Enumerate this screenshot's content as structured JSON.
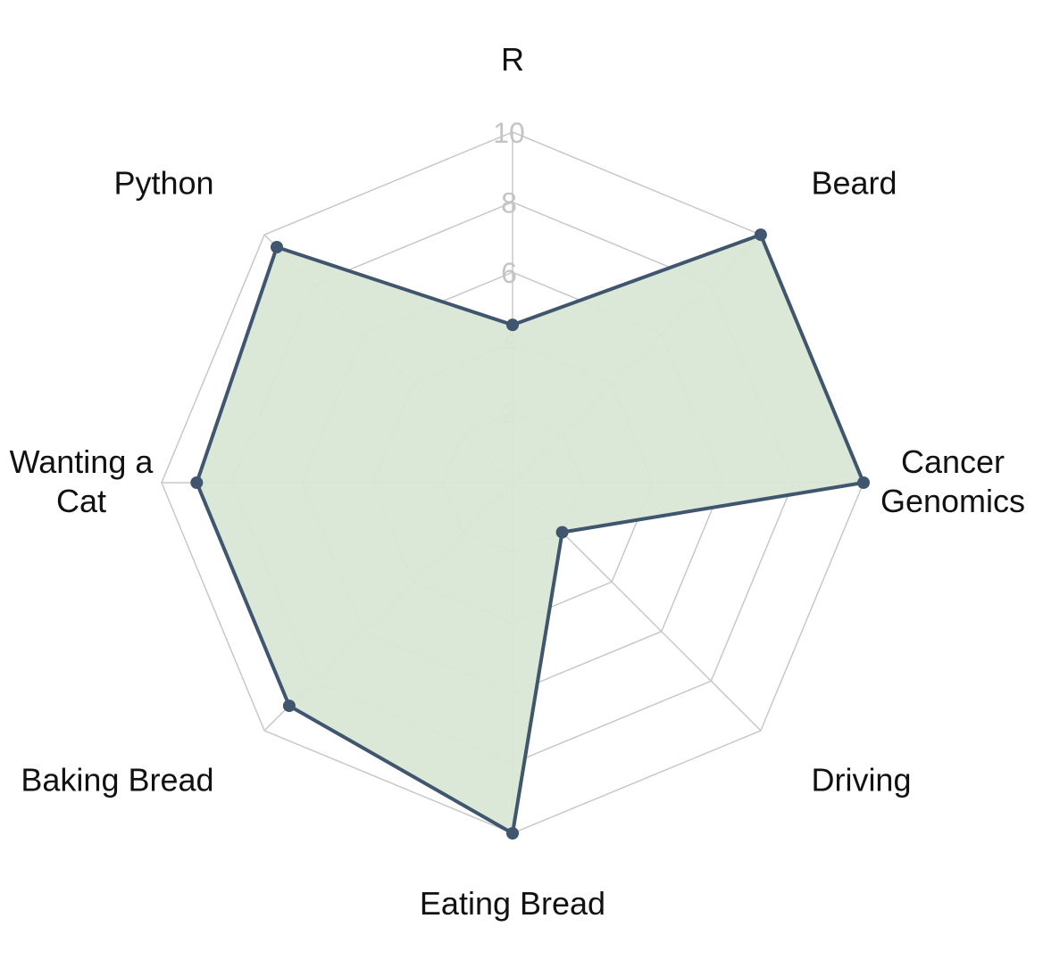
{
  "chart_data": {
    "type": "radar",
    "title": "",
    "axes": [
      "R",
      "Beard",
      "Cancer\nGenomics",
      "Driving",
      "Eating Bread",
      "Baking Bread",
      "Wanting a\nCat",
      "Python"
    ],
    "series": [
      {
        "values": [
          4.5,
          10,
          10,
          2,
          10,
          9,
          9,
          9.5
        ]
      }
    ],
    "rmin": 0,
    "rmax": 10,
    "ticks": [
      2,
      4,
      6,
      8,
      10
    ],
    "tick_labels": [
      "2",
      "4",
      "6",
      "8",
      "10"
    ],
    "grid": true,
    "colors": {
      "line": "#3f566e",
      "fill": "#d9e6d5",
      "grid": "#c8c8c8",
      "tick_text": "#c4c4c4"
    }
  }
}
